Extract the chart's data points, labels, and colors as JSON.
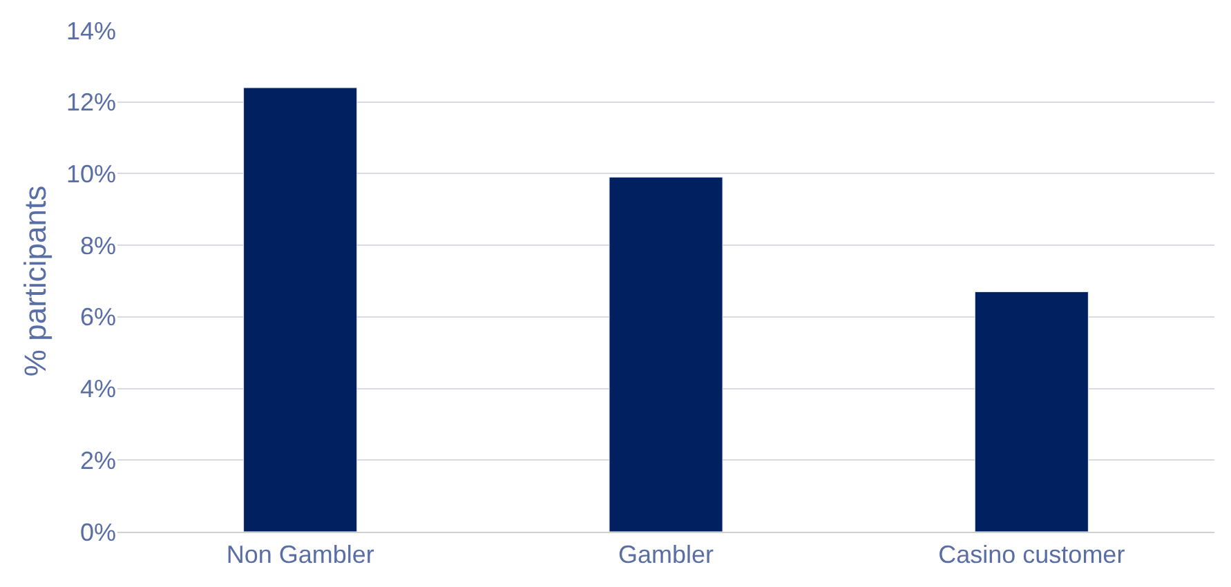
{
  "chart_data": {
    "type": "bar",
    "ylabel": "% participants",
    "categories": [
      "Non Gambler",
      "Gambler",
      "Casino customer"
    ],
    "values": [
      12.4,
      9.9,
      6.7
    ],
    "color": "#002060",
    "ylim": [
      0,
      14
    ],
    "yticks": [
      {
        "value": 0,
        "label": "0%"
      },
      {
        "value": 2,
        "label": "2%"
      },
      {
        "value": 4,
        "label": "4%"
      },
      {
        "value": 6,
        "label": "6%"
      },
      {
        "value": 8,
        "label": "8%"
      },
      {
        "value": 10,
        "label": "10%"
      },
      {
        "value": 12,
        "label": "12%"
      },
      {
        "value": 14,
        "label": "14%"
      }
    ],
    "grid": "y"
  }
}
